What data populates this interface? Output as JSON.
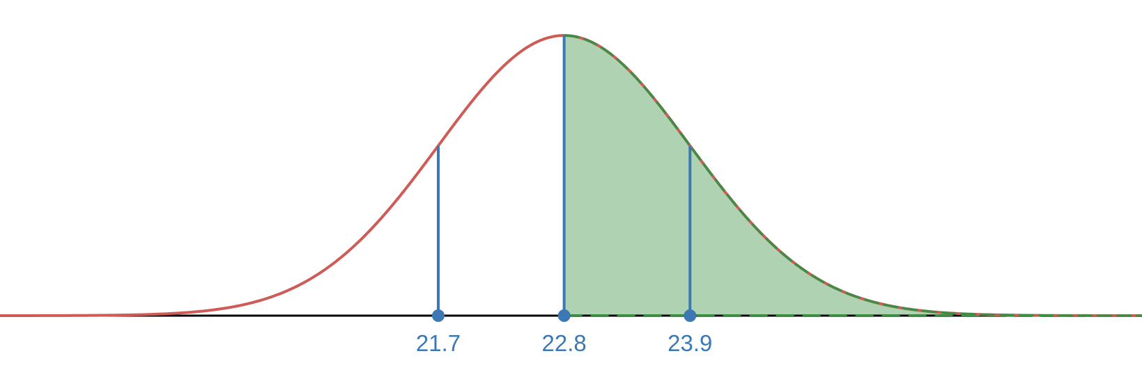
{
  "chart_data": {
    "type": "area",
    "title": "",
    "xlabel": "",
    "ylabel": "",
    "distribution": "normal",
    "mean": 22.8,
    "sd": 1.1,
    "xlim": [
      17.87,
      27.85
    ],
    "shaded_region": {
      "from": 22.8,
      "to": 27.85
    },
    "markers": [
      {
        "x": 21.7,
        "label": "21.7"
      },
      {
        "x": 22.8,
        "label": "22.8"
      },
      {
        "x": 23.9,
        "label": "23.9"
      }
    ],
    "grid": false,
    "legend": "none"
  },
  "colors": {
    "curve": "#cf5b56",
    "shade_fill": "#afd3b2",
    "shade_stroke": "#3f8c45",
    "marker": "#3b78b4",
    "axis": "#000000"
  }
}
